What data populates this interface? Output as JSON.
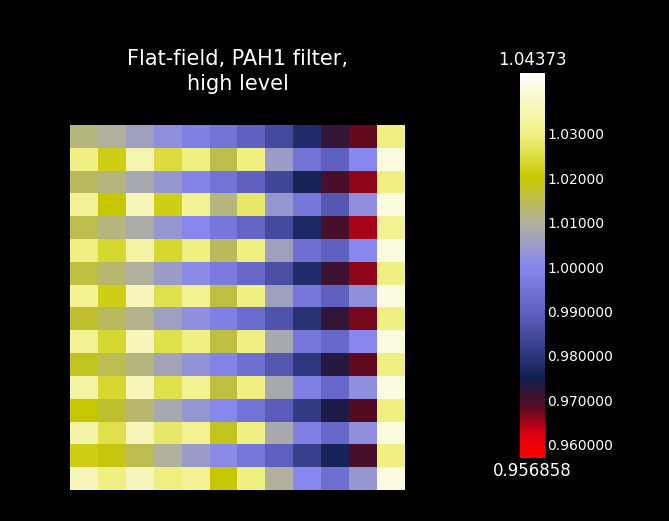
{
  "chart_data": {
    "type": "heatmap",
    "title": "Flat-field, PAH1 filter,\nhigh level",
    "tick_labels": false,
    "cells": [
      [
        1.012,
        1.01,
        1.006,
        1.002,
        0.998,
        0.995,
        0.99,
        0.985,
        0.978,
        0.972,
        0.968,
        1.03
      ],
      [
        1.03,
        1.022,
        1.035,
        1.025,
        1.03,
        1.015,
        1.03,
        1.005,
        0.995,
        0.99,
        1.0,
        1.04
      ],
      [
        1.014,
        1.012,
        1.008,
        1.004,
        0.999,
        0.995,
        0.99,
        0.984,
        0.976,
        0.97,
        0.966,
        1.03
      ],
      [
        1.032,
        1.02,
        1.036,
        1.022,
        1.032,
        1.012,
        1.028,
        1.004,
        0.996,
        0.988,
        1.002,
        1.04
      ],
      [
        1.015,
        1.012,
        1.009,
        1.004,
        1.0,
        0.996,
        0.991,
        0.985,
        0.977,
        0.97,
        0.965,
        1.032
      ],
      [
        1.03,
        1.024,
        1.034,
        1.024,
        1.03,
        1.014,
        1.03,
        1.006,
        0.994,
        0.99,
        1.0,
        1.04
      ],
      [
        1.016,
        1.013,
        1.01,
        1.005,
        1.001,
        0.997,
        0.992,
        0.986,
        0.978,
        0.971,
        0.966,
        1.03
      ],
      [
        1.032,
        1.022,
        1.036,
        1.026,
        1.032,
        1.016,
        1.03,
        1.006,
        0.996,
        0.99,
        1.002,
        1.04
      ],
      [
        1.017,
        1.014,
        1.011,
        1.006,
        1.002,
        0.998,
        0.993,
        0.987,
        0.979,
        0.972,
        0.967,
        1.03
      ],
      [
        1.032,
        1.024,
        1.036,
        1.026,
        1.03,
        1.016,
        1.03,
        1.008,
        0.996,
        0.992,
        1.0,
        1.04
      ],
      [
        1.018,
        1.015,
        1.012,
        1.007,
        1.003,
        0.999,
        0.994,
        0.988,
        0.98,
        0.973,
        0.968,
        1.03
      ],
      [
        1.034,
        1.024,
        1.036,
        1.026,
        1.032,
        1.016,
        1.03,
        1.008,
        0.998,
        0.992,
        1.002,
        1.04
      ],
      [
        1.02,
        1.017,
        1.013,
        1.008,
        1.004,
        1.0,
        0.995,
        0.989,
        0.981,
        0.974,
        0.969,
        1.03
      ],
      [
        1.034,
        1.026,
        1.036,
        1.028,
        1.032,
        1.018,
        1.03,
        1.008,
        0.998,
        0.992,
        1.002,
        1.04
      ],
      [
        1.022,
        1.019,
        1.015,
        1.01,
        1.005,
        1.001,
        0.996,
        0.99,
        0.982,
        0.976,
        0.97,
        1.03
      ],
      [
        1.036,
        1.03,
        1.036,
        1.03,
        1.032,
        1.02,
        1.03,
        1.01,
        1.0,
        0.994,
        1.004,
        1.04
      ]
    ],
    "colorbar": {
      "range": [
        0.956858,
        1.04373
      ],
      "ticks": [
        {
          "value": 1.03,
          "label": "1.03000"
        },
        {
          "value": 1.02,
          "label": "1.02000"
        },
        {
          "value": 1.01,
          "label": "1.01000"
        },
        {
          "value": 1.0,
          "label": "1.00000"
        },
        {
          "value": 0.99,
          "label": "0.990000"
        },
        {
          "value": 0.98,
          "label": "0.980000"
        },
        {
          "value": 0.97,
          "label": "0.970000"
        },
        {
          "value": 0.96,
          "label": "0.960000"
        }
      ]
    }
  }
}
